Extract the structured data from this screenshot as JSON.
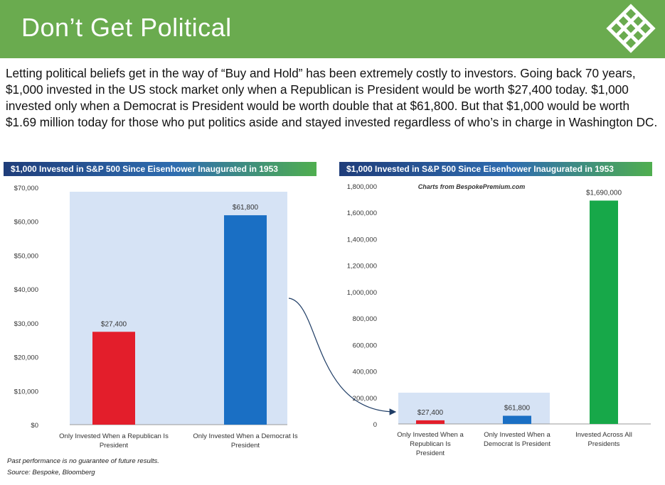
{
  "header": {
    "title": "Don’t Get Political",
    "logo_icon": "bespoke-lattice-logo"
  },
  "intro_text": "Letting political beliefs get in the way of “Buy and Hold” has been extremely costly to investors.  Going back 70 years, $1,000 invested in the US stock market only when a Republican is President would be worth $27,400 today.  $1,000 invested only when a Democrat is President would be worth double that at $61,800.  But that $1,000 would be worth $1.69 million today for those who put politics aside and stayed invested regardless of who’s in charge in Washington DC.",
  "footnotes": {
    "disclaimer": "Past performance is no guarantee of future results.",
    "source": "Source: Bespoke, Bloomberg"
  },
  "colors": {
    "republican": "#e31e2b",
    "democrat": "#1a6fc4",
    "all": "#17a849",
    "highlight": "#d6e3f5",
    "header_green": "#6aab4f"
  },
  "chart_data": [
    {
      "type": "bar",
      "title": "$1,000 Invested in S&P 500 Since Eisenhower Inaugurated in 1953",
      "categories": [
        "Only Invested When a Republican Is President",
        "Only Invested When a Democrat Is President"
      ],
      "values": [
        27400,
        61800
      ],
      "data_labels": [
        "$27,400",
        "$61,800"
      ],
      "ylim": [
        0,
        70000
      ],
      "yticks": [
        "$0",
        "$10,000",
        "$20,000",
        "$30,000",
        "$40,000",
        "$50,000",
        "$60,000",
        "$70,000"
      ],
      "grid": false
    },
    {
      "type": "bar",
      "title": "$1,000 Invested in S&P 500 Since Eisenhower Inaugurated in 1953",
      "annotation": "Charts from BespokePremium.com",
      "categories": [
        "Only Invested When a Republican Is President",
        "Only Invested When a Democrat Is President",
        "Invested Across All Presidents"
      ],
      "values": [
        27400,
        61800,
        1690000
      ],
      "data_labels": [
        "$27,400",
        "$61,800",
        "$1,690,000"
      ],
      "ylim": [
        0,
        1800000
      ],
      "yticks": [
        "0",
        "200,000",
        "400,000",
        "600,000",
        "800,000",
        "1,000,000",
        "1,200,000",
        "1,400,000",
        "1,600,000",
        "1,800,000"
      ],
      "grid": false
    }
  ]
}
